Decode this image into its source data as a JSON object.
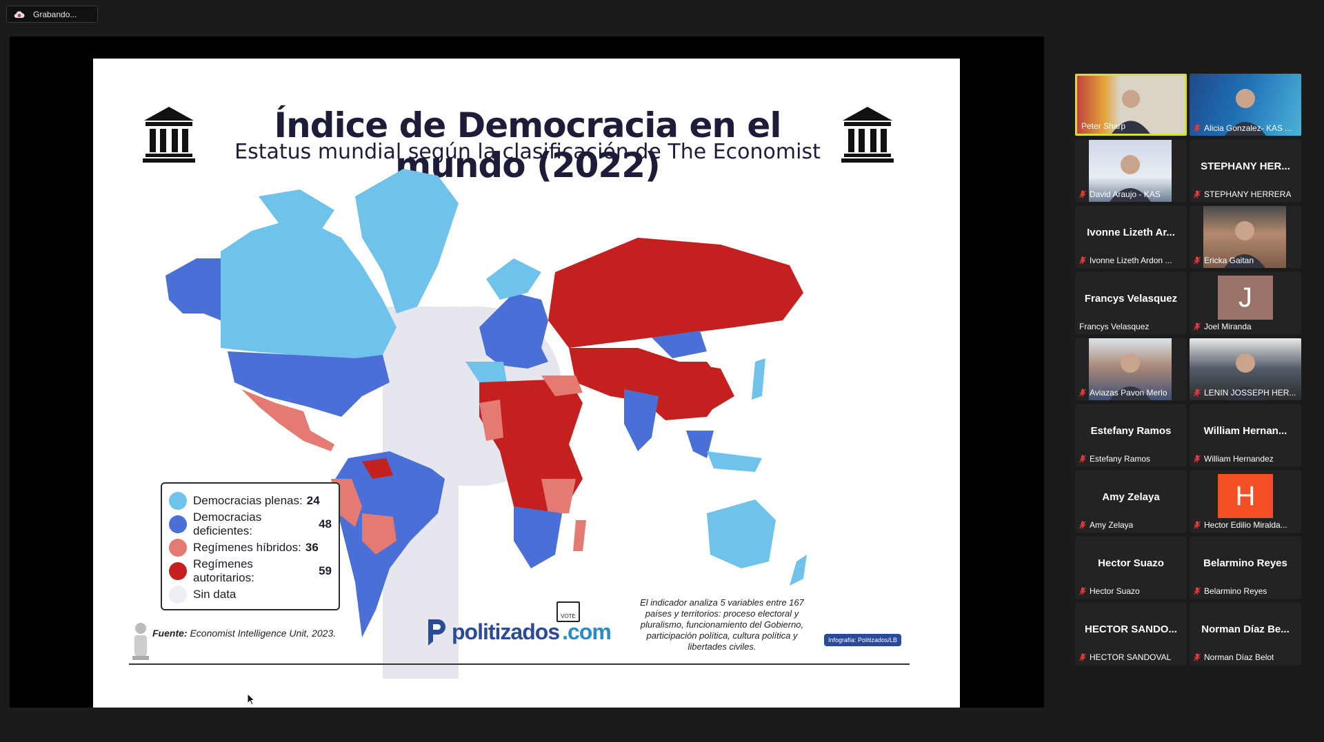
{
  "recording": {
    "label": "Grabando..."
  },
  "slide": {
    "title": "Índice de Democracia en el mundo (2022)",
    "subtitle": "Estatus mundial según la clasificación de The Economist",
    "legend": [
      {
        "label": "Democracias plenas:",
        "count": "24",
        "color": "#6fc3ea"
      },
      {
        "label": "Democracias deficientes:",
        "count": "48",
        "color": "#4a6fd6"
      },
      {
        "label": "Regímenes híbridos:",
        "count": "36",
        "color": "#e47a72"
      },
      {
        "label": "Regímenes autoritarios:",
        "count": "59",
        "color": "#c4201f"
      },
      {
        "label": "Sin data",
        "count": "",
        "color": "#eeeef4"
      }
    ],
    "source_label": "Fuente:",
    "source_text": "Economist Intelligence Unit, 2023.",
    "note_lines": [
      "El indicador analiza 5 variables entre 167",
      "países y territorios: proceso electoral y",
      "pluralismo, funcionamiento del Gobierno,",
      "participación política, cultura política y",
      "libertades civiles."
    ],
    "brand_main": "politizados",
    "brand_tld": ".com",
    "vote_label": "VOTE",
    "infographic_tag": "Infografía: Politizados/LB"
  },
  "participants": [
    {
      "big": "",
      "label": "Peter Sharp",
      "muted": false,
      "kind": "video-a",
      "active": true
    },
    {
      "big": "",
      "label": "Alicia Gonzalez- KAS ...",
      "muted": true,
      "kind": "video-b"
    },
    {
      "big": "",
      "label": "David Araujo - KAS",
      "muted": true,
      "kind": "video-c"
    },
    {
      "big": "STEPHANY HER...",
      "label": "STEPHANY HERRERA",
      "muted": true,
      "kind": "name"
    },
    {
      "big": "Ivonne Lizeth Ar...",
      "label": "Ivonne Lizeth Ardon ...",
      "muted": true,
      "kind": "name"
    },
    {
      "big": "",
      "label": "Ericka Gaitan",
      "muted": true,
      "kind": "video-d"
    },
    {
      "big": "Francys Velasquez",
      "label": "Francys Velasquez",
      "muted": false,
      "kind": "name"
    },
    {
      "big": "J",
      "label": "Joel Miranda",
      "muted": true,
      "kind": "letter",
      "color": "#9a7468"
    },
    {
      "big": "",
      "label": "Aviazas Pavon Merlo",
      "muted": true,
      "kind": "video-e"
    },
    {
      "big": "",
      "label": "LENIN JOSSEPH HER...",
      "muted": true,
      "kind": "video-f"
    },
    {
      "big": "Estefany Ramos",
      "label": "Estefany Ramos",
      "muted": true,
      "kind": "name"
    },
    {
      "big": "William  Hernan...",
      "label": "William Hernandez",
      "muted": true,
      "kind": "name"
    },
    {
      "big": "Amy Zelaya",
      "label": "Amy Zelaya",
      "muted": true,
      "kind": "name"
    },
    {
      "big": "H",
      "label": "Hector Edilio Miralda...",
      "muted": true,
      "kind": "letter",
      "color": "#f24f24"
    },
    {
      "big": "Hector Suazo",
      "label": "Hector Suazo",
      "muted": true,
      "kind": "name"
    },
    {
      "big": "Belarmino Reyes",
      "label": "Belarmino Reyes",
      "muted": true,
      "kind": "name"
    },
    {
      "big": "HECTOR  SANDO...",
      "label": "HECTOR SANDOVAL",
      "muted": true,
      "kind": "name"
    },
    {
      "big": "Norman Díaz Be...",
      "label": "Norman Díaz Belot",
      "muted": true,
      "kind": "name"
    }
  ]
}
